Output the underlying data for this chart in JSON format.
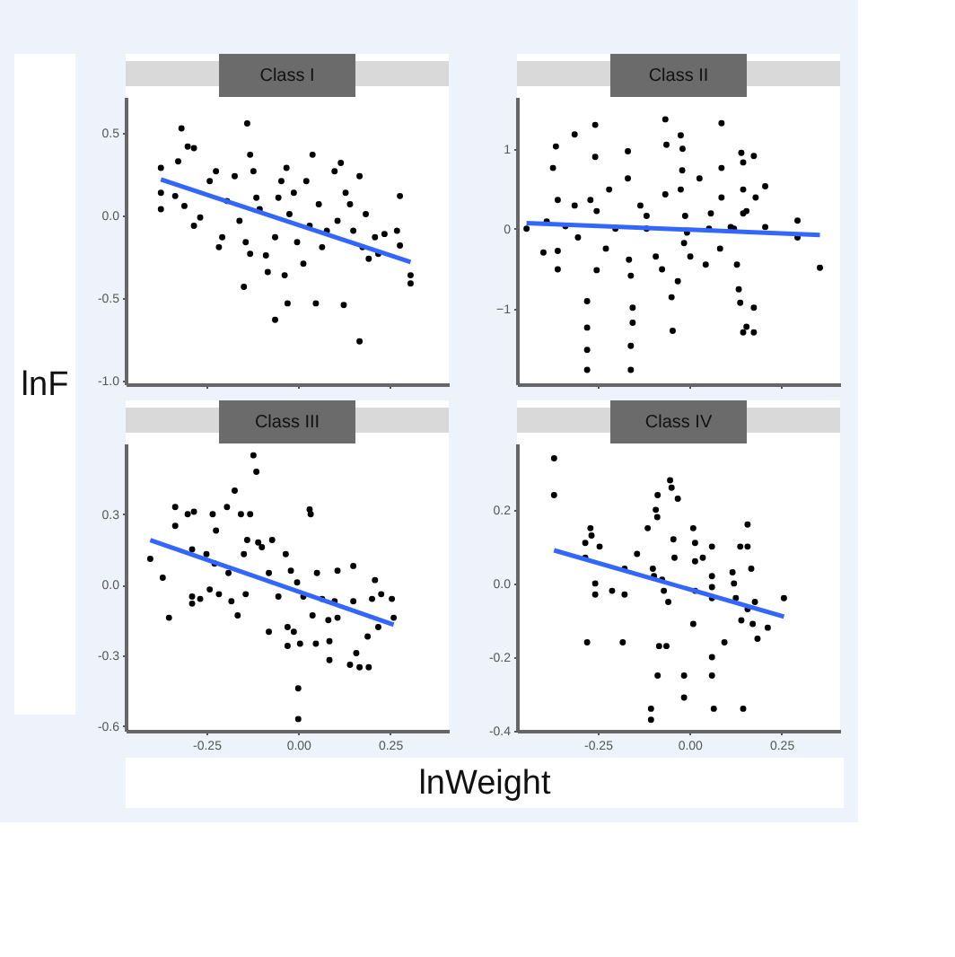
{
  "chart_data": [
    {
      "type": "scatter",
      "title": "Class I",
      "ylabel": "lnF",
      "tick_labels": "y",
      "xlim": [
        -0.47,
        0.41
      ],
      "ylim": [
        -1.02,
        0.72
      ],
      "xticks": [
        -0.25,
        0,
        0.25
      ],
      "yticks": [
        {
          "value": 0.5,
          "label": "0.5"
        },
        {
          "value": 0,
          "label": "0.0"
        },
        {
          "value": -0.5,
          "label": "-0.5"
        },
        {
          "value": -1,
          "label": "-1.0"
        }
      ],
      "series": [
        {
          "color": "#000000",
          "x": [
            -0.374,
            -0.374,
            -0.374,
            -0.318,
            -0.301,
            -0.284,
            -0.327,
            -0.335,
            -0.31,
            -0.284,
            -0.267,
            -0.241,
            -0.224,
            -0.216,
            -0.207,
            -0.194,
            -0.173,
            -0.16,
            -0.148,
            -0.143,
            -0.139,
            -0.131,
            -0.122,
            -0.114,
            -0.105,
            -0.131,
            -0.088,
            -0.083,
            -0.063,
            -0.054,
            -0.046,
            -0.037,
            -0.032,
            -0.024,
            -0.029,
            -0.063,
            -0.012,
            -0.003,
            0.014,
            0.022,
            0.031,
            0.039,
            0.048,
            0.056,
            0.065,
            0.078,
            0.099,
            0.107,
            0.116,
            0.129,
            0.141,
            0.15,
            0.167,
            0.167,
            0.175,
            0.184,
            0.124,
            0.192,
            0.209,
            0.218,
            0.235,
            0.269,
            0.277,
            0.277,
            0.306,
            0.306
          ],
          "values": [
            0.29,
            0.14,
            0.04,
            0.53,
            0.42,
            0.41,
            0.33,
            0.12,
            0.06,
            -0.06,
            -0.01,
            0.21,
            0.27,
            -0.19,
            -0.13,
            0.09,
            0.24,
            -0.03,
            -0.43,
            -0.16,
            0.56,
            0.37,
            0.27,
            0.11,
            0.04,
            -0.23,
            -0.24,
            -0.34,
            -0.13,
            0.11,
            0.21,
            -0.36,
            0.29,
            0.01,
            -0.53,
            -0.63,
            0.14,
            -0.16,
            -0.29,
            0.21,
            -0.06,
            0.37,
            -0.53,
            0.07,
            -0.19,
            -0.09,
            0.27,
            -0.03,
            0.32,
            0.14,
            0.07,
            -0.09,
            0.24,
            -0.76,
            -0.19,
            0.01,
            -0.54,
            -0.26,
            -0.13,
            -0.23,
            -0.11,
            -0.09,
            0.12,
            -0.18,
            -0.36,
            -0.41
          ]
        },
        {
          "type": "line",
          "color": "#3366ff",
          "x": [
            -0.374,
            0.306
          ],
          "values": [
            0.22,
            -0.28
          ]
        }
      ]
    },
    {
      "type": "scatter",
      "title": "Class II",
      "tick_labels": "y",
      "xlim": [
        -0.47,
        0.41
      ],
      "ylim": [
        -1.95,
        1.65
      ],
      "xticks": [
        -0.25,
        0,
        0.25
      ],
      "yticks": [
        1,
        0,
        -1
      ],
      "series": [
        {
          "color": "#000000",
          "x": [
            -0.444,
            -0.398,
            -0.389,
            -0.372,
            -0.364,
            -0.359,
            -0.359,
            -0.359,
            -0.338,
            -0.313,
            -0.313,
            -0.304,
            -0.279,
            -0.279,
            -0.279,
            -0.279,
            -0.27,
            -0.257,
            -0.257,
            -0.253,
            -0.253,
            -0.219,
            -0.228,
            -0.168,
            -0.168,
            -0.165,
            -0.16,
            -0.155,
            -0.155,
            -0.16,
            -0.16,
            -0.134,
            -0.117,
            -0.092,
            -0.066,
            -0.063,
            -0.066,
            -0.075,
            -0.049,
            -0.046,
            -0.032,
            -0.024,
            -0.019,
            -0.02,
            -0.024,
            -0.012,
            -0.015,
            -0.007,
            0.002,
            0.027,
            0.044,
            0.058,
            0.087,
            0.087,
            0.087,
            0.083,
            0.112,
            0.129,
            0.134,
            0.138,
            0.141,
            0.146,
            0.146,
            0.146,
            0.155,
            0.146,
            0.155,
            0.175,
            0.175,
            0.175,
            0.18,
            0.206,
            0.206,
            0.294,
            0.294,
            0.355,
            0.053,
            -0.117,
            -0.202,
            0.121
          ],
          "values": [
            0.0,
            -0.3,
            0.09,
            0.76,
            1.03,
            0.36,
            -0.28,
            -0.51,
            0.03,
            1.18,
            0.29,
            -0.11,
            -0.91,
            -1.24,
            -1.52,
            -1.77,
            0.36,
            1.3,
            0.9,
            0.22,
            -0.52,
            0.49,
            -0.25,
            0.97,
            0.63,
            -0.39,
            -0.59,
            -0.99,
            -1.18,
            -1.47,
            -1.77,
            0.29,
            0.16,
            -0.35,
            1.37,
            1.05,
            0.43,
            -0.51,
            -0.86,
            -1.28,
            -0.66,
            1.17,
            1.0,
            0.73,
            0.49,
            0.16,
            -0.18,
            -0.05,
            -0.35,
            0.63,
            -0.45,
            0.19,
            1.32,
            0.76,
            0.39,
            -0.25,
            0.02,
            -0.45,
            -0.76,
            -0.93,
            0.95,
            0.83,
            0.49,
            0.19,
            0.22,
            -1.3,
            -1.23,
            0.91,
            -0.99,
            -1.3,
            0.39,
            0.53,
            0.02,
            0.1,
            -0.11,
            -0.49,
            0.0,
            0.0,
            0.0,
            0.0
          ]
        },
        {
          "type": "line",
          "color": "#3366ff",
          "x": [
            -0.444,
            0.355
          ],
          "values": [
            0.07,
            -0.08
          ]
        }
      ]
    },
    {
      "type": "scatter",
      "title": "Class III",
      "xlabel": "lnWeight",
      "xlim": [
        -0.47,
        0.41
      ],
      "ylim": [
        -0.62,
        0.6
      ],
      "xticks": [
        {
          "value": -0.25,
          "label": "-0.25"
        },
        {
          "value": 0,
          "label": "0.00"
        },
        {
          "value": 0.25,
          "label": "0.25"
        }
      ],
      "yticks": [
        {
          "value": 0.3,
          "label": "0.3"
        },
        {
          "value": 0,
          "label": "0.0"
        },
        {
          "value": -0.3,
          "label": "-0.3"
        },
        {
          "value": -0.6,
          "label": "-0.6"
        }
      ],
      "series": [
        {
          "color": "#000000",
          "x": [
            -0.403,
            -0.369,
            -0.352,
            -0.335,
            -0.335,
            -0.301,
            -0.289,
            -0.284,
            -0.289,
            -0.289,
            -0.267,
            -0.25,
            -0.241,
            -0.233,
            -0.224,
            -0.228,
            -0.216,
            -0.194,
            -0.19,
            -0.182,
            -0.173,
            -0.165,
            -0.156,
            -0.148,
            -0.139,
            -0.143,
            -0.131,
            -0.122,
            -0.114,
            -0.109,
            -0.099,
            -0.08,
            -0.08,
            -0.071,
            -0.054,
            -0.034,
            -0.029,
            -0.029,
            -0.02,
            -0.012,
            -0.003,
            0.0,
            0.0,
            0.005,
            0.014,
            0.031,
            0.034,
            0.039,
            0.048,
            0.051,
            0.065,
            0.082,
            0.085,
            0.085,
            0.099,
            0.107,
            0.107,
            0.15,
            0.141,
            0.15,
            0.158,
            0.167,
            0.189,
            0.192,
            0.201,
            0.209,
            0.218,
            0.226,
            0.255,
            0.26
          ],
          "values": [
            0.11,
            0.03,
            -0.14,
            0.33,
            0.25,
            0.3,
            0.15,
            0.31,
            -0.05,
            -0.08,
            -0.06,
            0.13,
            -0.02,
            0.3,
            0.23,
            0.09,
            -0.04,
            0.33,
            0.05,
            -0.07,
            0.4,
            -0.13,
            0.3,
            0.13,
            0.19,
            -0.04,
            0.3,
            0.55,
            0.48,
            0.18,
            0.16,
            0.05,
            -0.2,
            0.19,
            -0.05,
            0.13,
            -0.18,
            -0.26,
            0.06,
            -0.2,
            0.01,
            -0.44,
            -0.57,
            -0.25,
            -0.05,
            0.32,
            0.3,
            -0.13,
            -0.25,
            0.05,
            -0.06,
            -0.15,
            -0.24,
            -0.32,
            -0.07,
            -0.14,
            0.06,
            0.08,
            -0.34,
            -0.07,
            -0.29,
            -0.35,
            -0.22,
            -0.35,
            -0.06,
            0.02,
            -0.18,
            -0.04,
            -0.06,
            -0.14
          ]
        },
        {
          "type": "line",
          "color": "#3366ff",
          "x": [
            -0.403,
            0.26
          ],
          "values": [
            0.19,
            -0.17
          ]
        }
      ]
    },
    {
      "type": "scatter",
      "title": "Class IV",
      "xlim": [
        -0.47,
        0.41
      ],
      "ylim": [
        -0.4,
        0.38
      ],
      "xticks": [
        {
          "value": -0.25,
          "label": "-0.25"
        },
        {
          "value": 0,
          "label": "0.00"
        },
        {
          "value": 0.25,
          "label": "0.25"
        }
      ],
      "yticks": [
        {
          "value": 0.2,
          "label": "0.2"
        },
        {
          "value": 0,
          "label": "0.0"
        },
        {
          "value": -0.2,
          "label": "-0.2"
        },
        {
          "value": -0.4,
          "label": "-0.4"
        }
      ],
      "series": [
        {
          "color": "#000000",
          "x": [
            -0.369,
            -0.369,
            -0.284,
            -0.284,
            -0.279,
            -0.27,
            -0.267,
            -0.257,
            -0.257,
            -0.245,
            -0.211,
            -0.182,
            -0.177,
            -0.177,
            -0.143,
            -0.114,
            -0.105,
            -0.105,
            -0.1,
            -0.097,
            -0.092,
            -0.088,
            -0.087,
            -0.087,
            -0.083,
            -0.075,
            -0.07,
            -0.063,
            -0.058,
            -0.053,
            -0.049,
            -0.044,
            -0.041,
            -0.032,
            -0.015,
            -0.015,
            0.01,
            0.015,
            0.015,
            0.01,
            0.015,
            0.036,
            0.061,
            0.061,
            0.061,
            0.061,
            0.066,
            0.061,
            0.061,
            0.095,
            0.117,
            0.121,
            0.126,
            0.138,
            0.141,
            0.146,
            0.158,
            0.158,
            0.168,
            0.158,
            0.172,
            0.178,
            0.185,
            0.213,
            0.257
          ],
          "values": [
            0.34,
            0.24,
            0.11,
            0.07,
            -0.16,
            0.15,
            0.13,
            0.0,
            -0.03,
            0.1,
            -0.02,
            -0.16,
            0.04,
            -0.03,
            0.08,
            0.15,
            -0.34,
            -0.37,
            0.04,
            0.02,
            0.2,
            0.18,
            0.24,
            -0.25,
            -0.17,
            0.01,
            -0.02,
            -0.17,
            -0.05,
            0.28,
            0.26,
            0.12,
            0.07,
            0.23,
            -0.25,
            -0.31,
            0.15,
            0.11,
            -0.02,
            -0.11,
            0.06,
            0.07,
            0.1,
            -0.01,
            0.02,
            -0.2,
            -0.34,
            -0.25,
            -0.04,
            -0.16,
            0.03,
            0.0,
            -0.04,
            0.1,
            -0.1,
            -0.34,
            0.16,
            0.1,
            0.04,
            -0.07,
            -0.11,
            -0.05,
            -0.15,
            -0.12,
            -0.04
          ]
        },
        {
          "type": "line",
          "color": "#3366ff",
          "x": [
            -0.369,
            0.257
          ],
          "values": [
            0.09,
            -0.09
          ]
        }
      ]
    }
  ]
}
